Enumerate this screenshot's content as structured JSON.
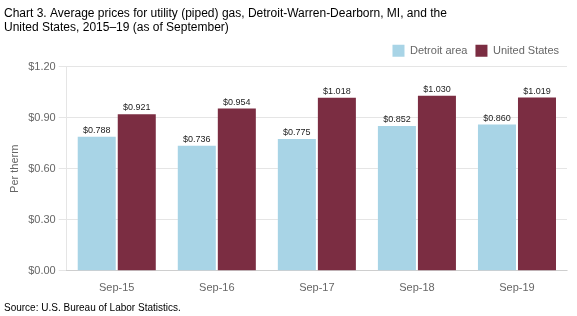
{
  "chart_data": {
    "type": "bar",
    "title": [
      "Chart 3. Average prices for utility (piped) gas, Detroit-Warren-Dearborn, MI, and the",
      "United States, 2015–19 (as of September)"
    ],
    "ylabel": "Per therm",
    "source": "Source: U.S. Bureau of Labor Statistics.",
    "categories": [
      "Sep-15",
      "Sep-16",
      "Sep-17",
      "Sep-18",
      "Sep-19"
    ],
    "series": [
      {
        "name": "Detroit area",
        "color": "#a8d4e6",
        "values": [
          0.788,
          0.736,
          0.775,
          0.852,
          0.86
        ],
        "value_labels": [
          "$0.788",
          "$0.736",
          "$0.775",
          "$0.852",
          "$0.860"
        ]
      },
      {
        "name": "United States",
        "color": "#7b2d42",
        "values": [
          0.921,
          0.954,
          1.018,
          1.03,
          1.019
        ],
        "value_labels": [
          "$0.921",
          "$0.954",
          "$1.018",
          "$1.030",
          "$1.019"
        ]
      }
    ],
    "ylim": [
      0.0,
      1.2
    ],
    "yticks": [
      {
        "value": 0.0,
        "label": "$0.00"
      },
      {
        "value": 0.3,
        "label": "$0.30"
      },
      {
        "value": 0.6,
        "label": "$0.60"
      },
      {
        "value": 0.9,
        "label": "$0.90"
      },
      {
        "value": 1.2,
        "label": "$1.20"
      }
    ],
    "grid": true,
    "legend": "upper right",
    "data_labels": true
  }
}
